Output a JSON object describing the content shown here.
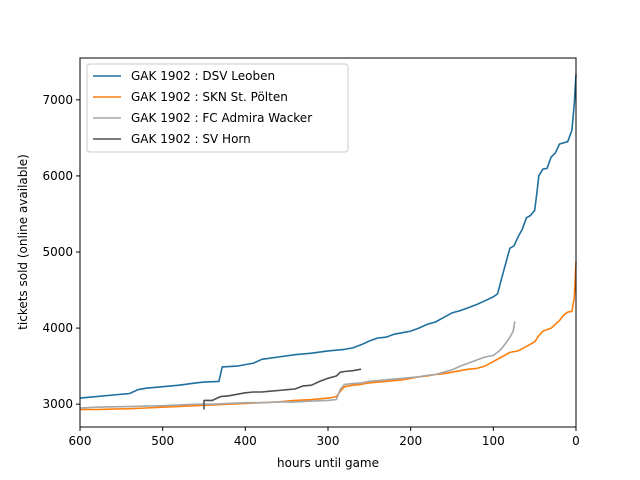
{
  "chart_data": {
    "type": "line",
    "xlabel": "hours until game",
    "ylabel": "tickets sold (online available)",
    "xlim": [
      600,
      0
    ],
    "ylim": [
      2700,
      7550
    ],
    "x_ticks": [
      600,
      500,
      400,
      300,
      200,
      100,
      0
    ],
    "y_ticks": [
      3000,
      4000,
      5000,
      6000,
      7000
    ],
    "grid": false,
    "legend_position": "top-left",
    "series": [
      {
        "name": "GAK 1902 : DSV Leoben",
        "color": "#1f6f9f",
        "points": [
          [
            600,
            3080
          ],
          [
            580,
            3100
          ],
          [
            560,
            3120
          ],
          [
            540,
            3140
          ],
          [
            530,
            3190
          ],
          [
            520,
            3210
          ],
          [
            500,
            3230
          ],
          [
            480,
            3250
          ],
          [
            460,
            3280
          ],
          [
            450,
            3290
          ],
          [
            432,
            3300
          ],
          [
            428,
            3490
          ],
          [
            410,
            3500
          ],
          [
            390,
            3540
          ],
          [
            380,
            3590
          ],
          [
            360,
            3620
          ],
          [
            340,
            3650
          ],
          [
            320,
            3670
          ],
          [
            300,
            3700
          ],
          [
            280,
            3720
          ],
          [
            270,
            3740
          ],
          [
            260,
            3780
          ],
          [
            250,
            3830
          ],
          [
            240,
            3870
          ],
          [
            230,
            3880
          ],
          [
            220,
            3920
          ],
          [
            210,
            3940
          ],
          [
            200,
            3960
          ],
          [
            190,
            4000
          ],
          [
            180,
            4050
          ],
          [
            170,
            4080
          ],
          [
            160,
            4140
          ],
          [
            150,
            4200
          ],
          [
            140,
            4230
          ],
          [
            130,
            4270
          ],
          [
            120,
            4310
          ],
          [
            110,
            4360
          ],
          [
            100,
            4410
          ],
          [
            95,
            4450
          ],
          [
            90,
            4650
          ],
          [
            85,
            4850
          ],
          [
            80,
            5050
          ],
          [
            75,
            5080
          ],
          [
            70,
            5200
          ],
          [
            65,
            5300
          ],
          [
            60,
            5450
          ],
          [
            55,
            5480
          ],
          [
            50,
            5550
          ],
          [
            47,
            5800
          ],
          [
            45,
            6000
          ],
          [
            40,
            6090
          ],
          [
            35,
            6100
          ],
          [
            30,
            6250
          ],
          [
            25,
            6300
          ],
          [
            20,
            6420
          ],
          [
            10,
            6450
          ],
          [
            5,
            6600
          ],
          [
            2,
            6950
          ],
          [
            0,
            7330
          ]
        ]
      },
      {
        "name": "GAK 1902 : SKN St. Pölten",
        "color": "#ff7f0e",
        "points": [
          [
            600,
            2930
          ],
          [
            580,
            2930
          ],
          [
            560,
            2935
          ],
          [
            540,
            2940
          ],
          [
            520,
            2950
          ],
          [
            500,
            2960
          ],
          [
            480,
            2970
          ],
          [
            460,
            2980
          ],
          [
            440,
            2990
          ],
          [
            420,
            3000
          ],
          [
            400,
            3010
          ],
          [
            380,
            3020
          ],
          [
            360,
            3030
          ],
          [
            340,
            3050
          ],
          [
            320,
            3060
          ],
          [
            300,
            3080
          ],
          [
            290,
            3100
          ],
          [
            285,
            3170
          ],
          [
            280,
            3230
          ],
          [
            270,
            3250
          ],
          [
            260,
            3260
          ],
          [
            250,
            3280
          ],
          [
            240,
            3290
          ],
          [
            230,
            3300
          ],
          [
            220,
            3310
          ],
          [
            210,
            3320
          ],
          [
            200,
            3340
          ],
          [
            190,
            3360
          ],
          [
            180,
            3370
          ],
          [
            170,
            3390
          ],
          [
            160,
            3400
          ],
          [
            150,
            3420
          ],
          [
            140,
            3440
          ],
          [
            130,
            3460
          ],
          [
            120,
            3470
          ],
          [
            110,
            3500
          ],
          [
            100,
            3560
          ],
          [
            90,
            3620
          ],
          [
            80,
            3680
          ],
          [
            70,
            3700
          ],
          [
            60,
            3760
          ],
          [
            50,
            3820
          ],
          [
            45,
            3900
          ],
          [
            40,
            3960
          ],
          [
            30,
            4000
          ],
          [
            20,
            4100
          ],
          [
            15,
            4170
          ],
          [
            10,
            4210
          ],
          [
            5,
            4220
          ],
          [
            2,
            4400
          ],
          [
            0,
            4870
          ]
        ]
      },
      {
        "name": "GAK 1902 : FC Admira Wacker",
        "color": "#a6a6a6",
        "points": [
          [
            600,
            2950
          ],
          [
            580,
            2960
          ],
          [
            560,
            2965
          ],
          [
            540,
            2970
          ],
          [
            520,
            2975
          ],
          [
            500,
            2980
          ],
          [
            480,
            2990
          ],
          [
            460,
            3000
          ],
          [
            440,
            3000
          ],
          [
            420,
            3010
          ],
          [
            400,
            3020
          ],
          [
            380,
            3020
          ],
          [
            360,
            3030
          ],
          [
            340,
            3030
          ],
          [
            320,
            3040
          ],
          [
            300,
            3050
          ],
          [
            290,
            3060
          ],
          [
            285,
            3200
          ],
          [
            280,
            3260
          ],
          [
            270,
            3270
          ],
          [
            260,
            3280
          ],
          [
            250,
            3300
          ],
          [
            240,
            3310
          ],
          [
            230,
            3320
          ],
          [
            220,
            3330
          ],
          [
            210,
            3340
          ],
          [
            200,
            3350
          ],
          [
            190,
            3360
          ],
          [
            180,
            3380
          ],
          [
            170,
            3390
          ],
          [
            160,
            3420
          ],
          [
            150,
            3450
          ],
          [
            140,
            3500
          ],
          [
            130,
            3540
          ],
          [
            120,
            3580
          ],
          [
            110,
            3620
          ],
          [
            100,
            3640
          ],
          [
            95,
            3680
          ],
          [
            90,
            3730
          ],
          [
            85,
            3800
          ],
          [
            80,
            3880
          ],
          [
            76,
            3960
          ],
          [
            74,
            4090
          ]
        ]
      },
      {
        "name": "GAK 1902 : SV Horn",
        "color": "#505050",
        "points": [
          [
            450,
            2930
          ],
          [
            450,
            3050
          ],
          [
            440,
            3050
          ],
          [
            430,
            3100
          ],
          [
            420,
            3110
          ],
          [
            410,
            3130
          ],
          [
            400,
            3150
          ],
          [
            390,
            3160
          ],
          [
            380,
            3160
          ],
          [
            370,
            3170
          ],
          [
            360,
            3180
          ],
          [
            350,
            3190
          ],
          [
            340,
            3200
          ],
          [
            330,
            3240
          ],
          [
            320,
            3250
          ],
          [
            310,
            3300
          ],
          [
            300,
            3340
          ],
          [
            290,
            3370
          ],
          [
            285,
            3420
          ],
          [
            280,
            3430
          ],
          [
            270,
            3440
          ],
          [
            260,
            3460
          ]
        ]
      }
    ]
  }
}
